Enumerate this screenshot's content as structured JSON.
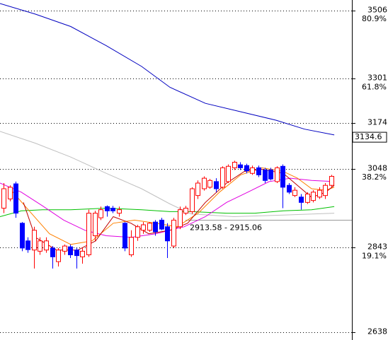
{
  "chart_data": {
    "type": "candlestick",
    "log_scale": true,
    "grid": true,
    "xlim": [
      -0.58,
      57.4
    ],
    "ylim": [
      2620,
      3539
    ],
    "yticks": [
      3506,
      3301,
      3174,
      3048,
      2843,
      2638
    ],
    "fib_labels": [
      {
        "value": 3506,
        "label": "80.9%"
      },
      {
        "value": 3301,
        "label": "61.8%"
      },
      {
        "value": 3048,
        "label": "38.2%"
      },
      {
        "value": 2843,
        "label": "19.1%"
      }
    ],
    "last_price": 3134.6,
    "annotation": {
      "text": "2913.58 - 2915.06",
      "low": 2913.58,
      "high": 2915.06
    },
    "up_color": "#ff0000",
    "down_color": "#0000ff",
    "candles": {
      "open": [
        2944,
        2968,
        3008,
        2905,
        2860,
        2837,
        2834,
        2837,
        2842,
        2808,
        2834,
        2845,
        2837,
        2820,
        2825,
        2873,
        2919,
        2948,
        2944,
        2931,
        2905,
        2825,
        2869,
        2887,
        2887,
        2908,
        2913,
        2896,
        2847,
        2896,
        2931,
        2935,
        2977,
        2995,
        2999,
        3014,
        2999,
        3014,
        3051,
        3059,
        3057,
        3036,
        3051,
        3045,
        3045,
        3014,
        3055,
        3004,
        2977,
        2973,
        2959,
        2964,
        2973,
        2977,
        3004
      ],
      "high": [
        3010,
        3004,
        3014,
        2908,
        2869,
        2896,
        2869,
        2869,
        2847,
        2842,
        2851,
        2851,
        2842,
        2842,
        2940,
        2937,
        2948,
        2951,
        2950,
        2948,
        2908,
        2887,
        2901,
        2908,
        2908,
        2913,
        2919,
        2905,
        2919,
        2948,
        2950,
        2999,
        3017,
        3028,
        3021,
        3023,
        3055,
        3060,
        3070,
        3066,
        3062,
        3057,
        3057,
        3051,
        3051,
        3055,
        3060,
        3010,
        2999,
        2981,
        2986,
        2991,
        2999,
        3010,
        3032
      ],
      "low": [
        2931,
        2962,
        2919,
        2834,
        2830,
        2791,
        2825,
        2830,
        2791,
        2796,
        2825,
        2817,
        2791,
        2803,
        2820,
        2860,
        2913,
        2922,
        2931,
        2922,
        2834,
        2820,
        2860,
        2878,
        2883,
        2873,
        2887,
        2817,
        2842,
        2890,
        2926,
        2929,
        2968,
        2990,
        2995,
        2986,
        2995,
        3010,
        3045,
        3045,
        3036,
        3032,
        3026,
        3010,
        3017,
        3010,
        2944,
        2981,
        2973,
        2940,
        2955,
        2959,
        2968,
        2968,
        2999
      ],
      "close": [
        2995,
        2999,
        2931,
        2842,
        2838,
        2887,
        2860,
        2860,
        2820,
        2837,
        2847,
        2825,
        2823,
        2834,
        2931,
        2931,
        2940,
        2937,
        2937,
        2940,
        2842,
        2869,
        2896,
        2901,
        2905,
        2883,
        2890,
        2860,
        2913,
        2940,
        2944,
        2995,
        3010,
        3023,
        3017,
        2995,
        3051,
        3055,
        3066,
        3051,
        3043,
        3051,
        3032,
        3017,
        3021,
        3051,
        2999,
        2986,
        2991,
        2959,
        2981,
        2986,
        2991,
        3004,
        3028
      ]
    },
    "series": [
      {
        "color": "#0000c0",
        "x": [
          -0.58,
          5.25,
          11.08,
          16.92,
          22.75,
          27.42,
          33.26,
          39.09,
          44.92,
          49.59,
          54.49
        ],
        "values": [
          3528,
          3495,
          3457,
          3399,
          3337,
          3276,
          3230,
          3206,
          3182,
          3157,
          3141
        ]
      },
      {
        "color": "#c0c0c0",
        "x": [
          -0.58,
          5.25,
          11.08,
          16.92,
          22.75,
          27.42,
          30.92,
          37.92,
          46.09,
          54.49
        ],
        "values": [
          3151,
          3118,
          3080,
          3036,
          2995,
          2955,
          2929,
          2922,
          2926,
          2931
        ]
      },
      {
        "color": "#00c000",
        "x": [
          -0.58,
          2.92,
          6.42,
          11.08,
          16.92,
          22.75,
          27.42,
          30.92,
          36.76,
          41.42,
          46.09,
          50.76,
          54.49
        ],
        "values": [
          2922,
          2937,
          2940,
          2940,
          2944,
          2940,
          2935,
          2935,
          2931,
          2931,
          2937,
          2940,
          2948
        ]
      },
      {
        "color": "#e000e0",
        "x": [
          -0.58,
          2.92,
          6.42,
          9.92,
          13.42,
          16.92,
          21.0,
          25.09,
          29.75,
          33.26,
          36.76,
          40.26,
          43.76,
          47.26,
          50.76,
          54.49
        ],
        "values": [
          3010,
          2986,
          2950,
          2913,
          2887,
          2873,
          2869,
          2878,
          2896,
          2922,
          2959,
          2986,
          3014,
          3023,
          3017,
          3014
        ]
      },
      {
        "color": "#ff8000",
        "x": [
          1.05,
          4.08,
          7.58,
          11.08,
          14.59,
          18.09,
          21.59,
          25.09,
          28.59,
          32.09,
          35.59,
          39.09,
          42.59,
          46.09,
          48.43,
          50.76,
          53.09,
          54.49
        ],
        "values": [
          2995,
          2940,
          2878,
          2851,
          2860,
          2905,
          2913,
          2905,
          2896,
          2931,
          2986,
          3032,
          3051,
          3041,
          3023,
          2995,
          2991,
          2999
        ]
      },
      {
        "color": "#c00000",
        "x": [
          3.27,
          5.25,
          8.75,
          12.25,
          15.17,
          18.09,
          21.0,
          23.92,
          27.42,
          30.34,
          33.26,
          36.76,
          39.67,
          42.59,
          46.09,
          48.43,
          50.76,
          53.09,
          54.49
        ],
        "values": [
          2959,
          2869,
          2837,
          2837,
          2860,
          2922,
          2905,
          2878,
          2887,
          2905,
          2959,
          3010,
          3041,
          3047,
          3036,
          3004,
          2972,
          2986,
          3004
        ]
      }
    ]
  }
}
